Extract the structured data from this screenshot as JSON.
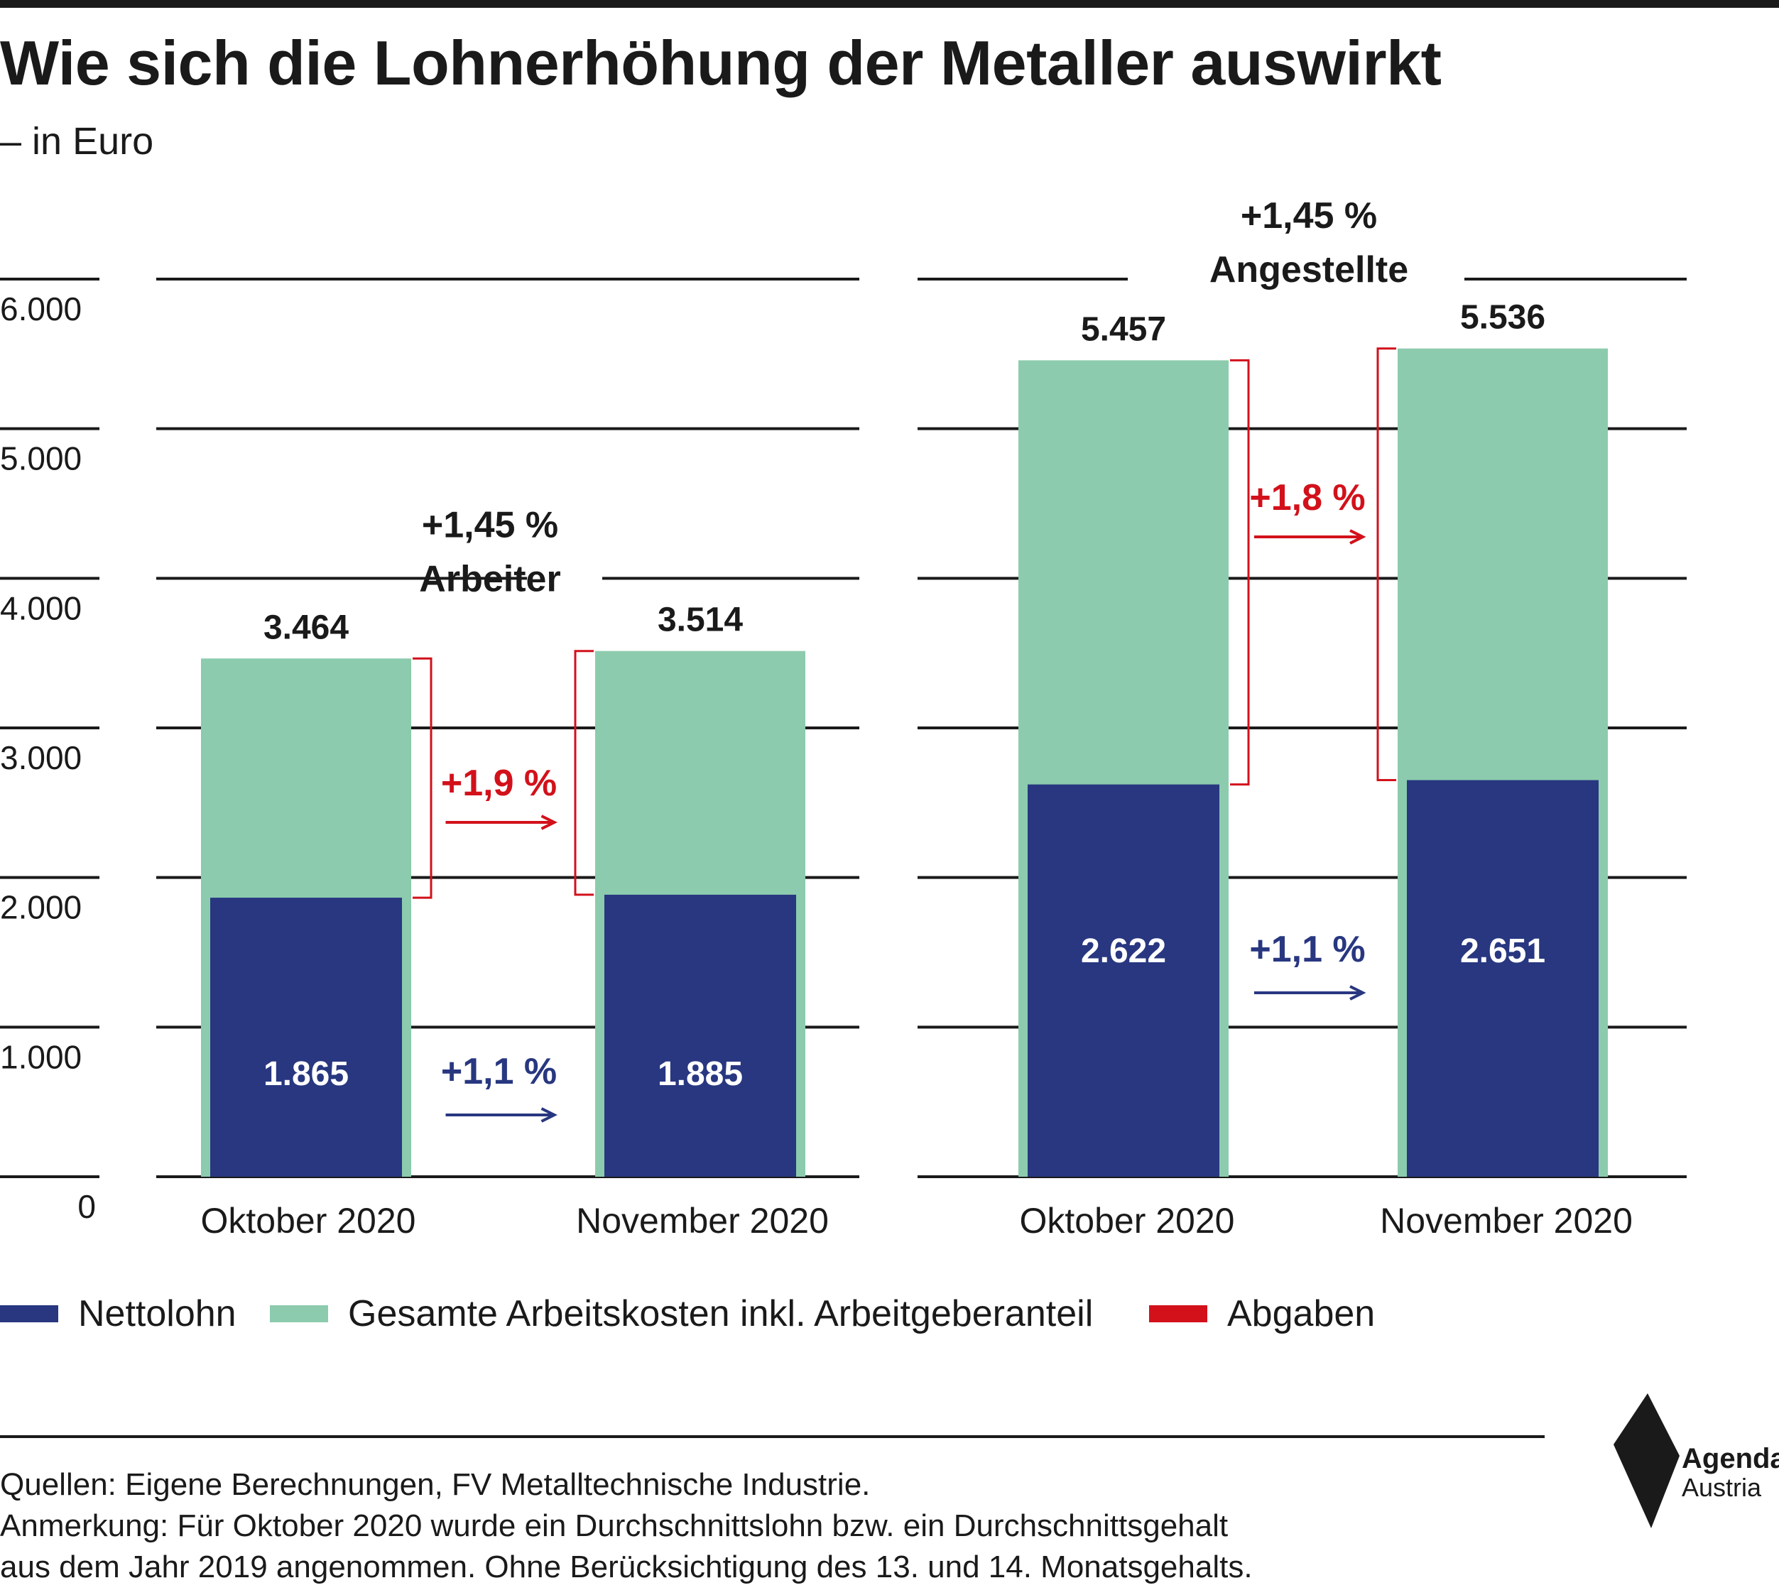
{
  "title": "Wie sich die Lohnerhöhung der Metaller auswirkt",
  "subtitle": "– in Euro",
  "colors": {
    "nettolohn": "#283780",
    "gesamt": "#8ccbad",
    "abgaben": "#d2111b",
    "text": "#1a1a1a",
    "gridline": "#1a1a1a",
    "bar_label_on_dark": "#ffffff"
  },
  "chart_data": {
    "type": "bar",
    "stacking": "overlapping",
    "ylim": [
      0,
      6000
    ],
    "y_ticks": [
      "0",
      "1.000",
      "2.000",
      "3.000",
      "4.000",
      "5.000",
      "6.000"
    ],
    "grid": true,
    "legend_position": "bottom",
    "series_names": [
      "Nettolohn",
      "Gesamte Arbeitskosten inkl. Arbeitgeberanteil",
      "Abgaben"
    ],
    "panels": [
      {
        "group_label": "Arbeiter",
        "group_change": "+1,45 %",
        "categories": [
          "Oktober 2020",
          "November 2020"
        ],
        "gesamt_values": [
          3464,
          3514
        ],
        "gesamt_labels": [
          "3.464",
          "3.514"
        ],
        "netto_values": [
          1865,
          1885
        ],
        "netto_labels": [
          "1.865",
          "1.885"
        ],
        "abgaben_change": "+1,9 %",
        "netto_change": "+1,1 %"
      },
      {
        "group_label": "Angestellte",
        "group_change": "+1,45 %",
        "categories": [
          "Oktober 2020",
          "November 2020"
        ],
        "gesamt_values": [
          5457,
          5536
        ],
        "gesamt_labels": [
          "5.457",
          "5.536"
        ],
        "netto_values": [
          2622,
          2651
        ],
        "netto_labels": [
          "2.622",
          "2.651"
        ],
        "abgaben_change": "+1,8 %",
        "netto_change": "+1,1 %"
      }
    ]
  },
  "legend": {
    "items": [
      {
        "label": "Nettolohn",
        "color": "#283780"
      },
      {
        "label": "Gesamte Arbeitskosten inkl. Arbeitgeberanteil",
        "color": "#8ccbad"
      },
      {
        "label": "Abgaben",
        "color": "#d2111b"
      }
    ]
  },
  "notes": {
    "sources": "Quellen: Eigene Berechnungen, FV Metalltechnische Industrie.",
    "remark_line1": "Anmerkung: Für Oktober 2020 wurde ein Durchschnittslohn bzw. ein Durchschnittsgehalt",
    "remark_line2": "aus dem Jahr 2019 angenommen. Ohne Berücksichtigung des 13. und 14. Monatsgehalts."
  },
  "logo": {
    "line1": "Agenda",
    "line2": "Austria"
  }
}
